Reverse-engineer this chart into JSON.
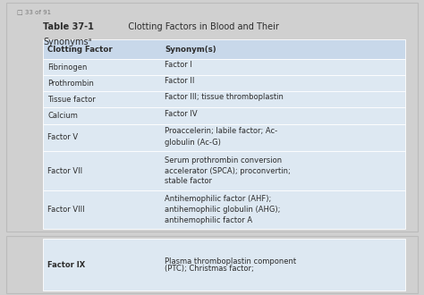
{
  "page_indicator": "□ 33 of 91",
  "title_bold": "Table 37-1",
  "title_normal": "   Clotting Factors in Blood and Their",
  "title_line2": "Synonymsᵃ",
  "header": [
    "Clotting Factor",
    "Synonym(s)"
  ],
  "rows": [
    [
      "Fibrinogen",
      "Factor I"
    ],
    [
      "Prothrombin",
      "Factor II"
    ],
    [
      "Tissue factor",
      "Factor III; tissue thromboplastin"
    ],
    [
      "Calcium",
      "Factor IV"
    ],
    [
      "Factor V",
      "Proaccelerin; labile factor; Ac-\n  globulin (Ac-G)"
    ],
    [
      "Factor VII",
      "Serum prothrombin conversion\n  accelerator (SPCA); proconvertin;\n  stable factor"
    ],
    [
      "Factor VIII",
      "Antihemophilic factor (AHF);\n  antihemophilic globulin (AHG);\n  antihemophilic factor A"
    ]
  ],
  "bottom_row_left": "Factor IX",
  "bottom_row_right": "Plasma thromboplastin component\n(PTC); Christmas factor;",
  "header_bg": "#c8d8ea",
  "row_bg": "#dde8f2",
  "outer_bg": "#d0d0d0",
  "card_bg": "#f7f7f7",
  "card_bg2": "#f9f9f9",
  "border_color": "#bbbbbb",
  "text_color": "#2c2c2c",
  "indicator_color": "#777777",
  "font_size": 6.0,
  "header_font_size": 6.2,
  "title_font_size": 7.0,
  "indicator_font_size": 5.0
}
